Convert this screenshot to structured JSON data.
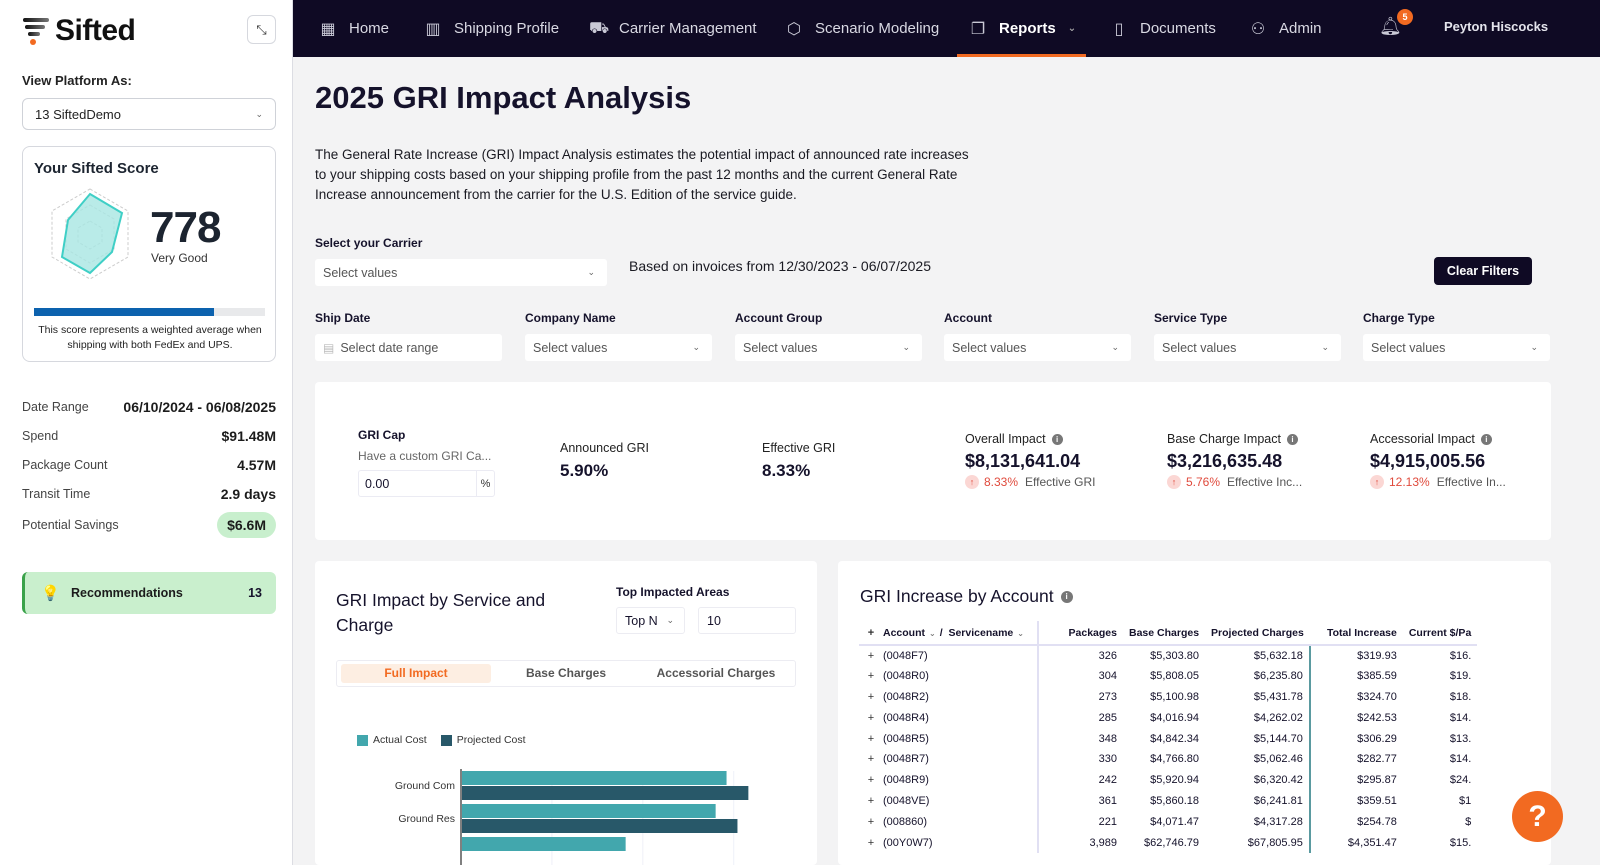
{
  "sidebar": {
    "logo_text": "Sifted",
    "view_label": "View Platform As:",
    "view_value": "13 SiftedDemo",
    "score": {
      "title": "Your Sifted Score",
      "value": "778",
      "grade": "Very Good",
      "progress_percent": 78,
      "note": "This score represents a weighted average when shipping with both FedEx and UPS."
    },
    "stats": [
      {
        "label": "Date Range",
        "value": "06/10/2024 - 06/08/2025"
      },
      {
        "label": "Spend",
        "value": "$91.48M"
      },
      {
        "label": "Package Count",
        "value": "4.57M"
      },
      {
        "label": "Transit Time",
        "value": "2.9 days"
      },
      {
        "label": "Potential Savings",
        "value": "$6.6M"
      }
    ],
    "recommendations": {
      "label": "Recommendations",
      "count": "13"
    }
  },
  "nav": {
    "items": [
      {
        "label": "Home",
        "icon": "grid-icon"
      },
      {
        "label": "Shipping Profile",
        "icon": "bar-chart-icon"
      },
      {
        "label": "Carrier Management",
        "icon": "car-icon"
      },
      {
        "label": "Scenario Modeling",
        "icon": "cube-icon"
      },
      {
        "label": "Reports",
        "icon": "reports-icon",
        "active": true
      },
      {
        "label": "Documents",
        "icon": "document-icon"
      },
      {
        "label": "Admin",
        "icon": "users-icon"
      }
    ],
    "notification_count": "5",
    "user_name": "Peyton Hiscocks"
  },
  "main": {
    "title": "2025 GRI Impact Analysis",
    "description": "The General Rate Increase (GRI) Impact Analysis estimates the potential impact of announced rate increases to your shipping costs based on your shipping profile from the past 12 months and the current General Rate Increase announcement from the carrier for the U.S. Edition of the service guide.",
    "carrier_label": "Select your Carrier",
    "carrier_placeholder": "Select values",
    "invoice_range": "Based on invoices from 12/30/2023 - 06/07/2025",
    "clear_filters": "Clear Filters",
    "filters": [
      {
        "label": "Ship Date",
        "placeholder": "Select date range"
      },
      {
        "label": "Company Name",
        "placeholder": "Select values"
      },
      {
        "label": "Account Group",
        "placeholder": "Select values"
      },
      {
        "label": "Account",
        "placeholder": "Select values"
      },
      {
        "label": "Service Type",
        "placeholder": "Select values"
      },
      {
        "label": "Charge Type",
        "placeholder": "Select values"
      }
    ]
  },
  "kpis": {
    "gri_cap": {
      "title": "GRI Cap",
      "subtitle": "Have a custom GRI Ca...",
      "value": "0.00",
      "unit": "%"
    },
    "announced": {
      "label": "Announced GRI",
      "value": "5.90%"
    },
    "effective": {
      "label": "Effective GRI",
      "value": "8.33%"
    },
    "impacts": [
      {
        "label": "Overall Impact",
        "value": "$8,131,641.04",
        "delta": "8.33%",
        "delta_label": "Effective GRI"
      },
      {
        "label": "Base Charge Impact",
        "value": "$3,216,635.48",
        "delta": "5.76%",
        "delta_label": "Effective Inc..."
      },
      {
        "label": "Accessorial Impact",
        "value": "$4,915,005.56",
        "delta": "12.13%",
        "delta_label": "Effective In..."
      }
    ]
  },
  "chart_panel": {
    "title": "GRI Impact by Service and Charge",
    "top_label": "Top Impacted Areas",
    "top_mode": "Top N",
    "top_value": "10",
    "tabs": [
      "Full Impact",
      "Base Charges",
      "Accessorial Charges"
    ],
    "active_tab": 0
  },
  "chart_data": {
    "type": "bar",
    "orientation": "horizontal",
    "title": "GRI Impact by Service and Charge",
    "categories": [
      "Ground Com",
      "Ground Res",
      ""
    ],
    "series": [
      {
        "name": "Actual Cost",
        "color": "#42a7ad",
        "values": [
          0.97,
          0.93,
          0.6
        ]
      },
      {
        "name": "Projected Cost",
        "color": "#285869",
        "values": [
          1.05,
          1.01,
          null
        ]
      }
    ],
    "xlim": [
      0,
      1.1
    ],
    "grid": true,
    "legend": "top-left",
    "note": "values relative (axis ticks not visible)"
  },
  "table_panel": {
    "title": "GRI Increase by Account",
    "columns": [
      "Account",
      "Servicename",
      "Packages",
      "Base Charges",
      "Projected Charges",
      "Total Increase",
      "Current $/Pa"
    ],
    "rows": [
      {
        "account": "(0048F7)",
        "packages": "326",
        "base": "$5,303.80",
        "projected": "$5,632.18",
        "increase": "$319.93",
        "current": "$16."
      },
      {
        "account": "(0048R0)",
        "packages": "304",
        "base": "$5,808.05",
        "projected": "$6,235.80",
        "increase": "$385.59",
        "current": "$19."
      },
      {
        "account": "(0048R2)",
        "packages": "273",
        "base": "$5,100.98",
        "projected": "$5,431.78",
        "increase": "$324.70",
        "current": "$18."
      },
      {
        "account": "(0048R4)",
        "packages": "285",
        "base": "$4,016.94",
        "projected": "$4,262.02",
        "increase": "$242.53",
        "current": "$14."
      },
      {
        "account": "(0048R5)",
        "packages": "348",
        "base": "$4,842.34",
        "projected": "$5,144.70",
        "increase": "$306.29",
        "current": "$13."
      },
      {
        "account": "(0048R7)",
        "packages": "330",
        "base": "$4,766.80",
        "projected": "$5,062.46",
        "increase": "$282.77",
        "current": "$14."
      },
      {
        "account": "(0048R9)",
        "packages": "242",
        "base": "$5,920.94",
        "projected": "$6,320.42",
        "increase": "$295.87",
        "current": "$24."
      },
      {
        "account": "(0048VE)",
        "packages": "361",
        "base": "$5,860.18",
        "projected": "$6,241.81",
        "increase": "$359.51",
        "current": "$1"
      },
      {
        "account": "(008860)",
        "packages": "221",
        "base": "$4,071.47",
        "projected": "$4,317.28",
        "increase": "$254.78",
        "current": "$"
      },
      {
        "account": "(00Y0W7)",
        "packages": "3,989",
        "base": "$62,746.79",
        "projected": "$67,805.95",
        "increase": "$4,351.47",
        "current": "$15."
      }
    ]
  },
  "help": {
    "label": "?"
  }
}
